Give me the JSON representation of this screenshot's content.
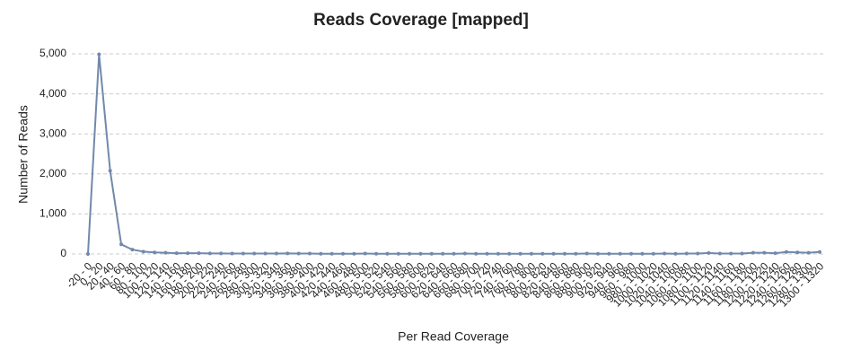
{
  "chart_data": {
    "type": "line",
    "title": "Reads Coverage [mapped]",
    "x_label": "Per Read Coverage",
    "y_label": "Number of Reads",
    "categories": [
      "-20 - 0",
      "0 - 20",
      "20 - 40",
      "40 - 60",
      "60 - 80",
      "80 - 100",
      "100 - 120",
      "120 - 140",
      "140 - 160",
      "160 - 180",
      "180 - 200",
      "200 - 220",
      "220 - 240",
      "240 - 260",
      "260 - 280",
      "280 - 300",
      "300 - 320",
      "320 - 340",
      "340 - 360",
      "360 - 380",
      "380 - 400",
      "400 - 420",
      "420 - 440",
      "440 - 460",
      "460 - 480",
      "480 - 500",
      "500 - 520",
      "520 - 540",
      "540 - 560",
      "560 - 580",
      "580 - 600",
      "600 - 620",
      "620 - 640",
      "640 - 660",
      "660 - 680",
      "680 - 700",
      "700 - 720",
      "720 - 740",
      "740 - 760",
      "760 - 780",
      "780 - 800",
      "800 - 820",
      "820 - 840",
      "840 - 860",
      "860 - 880",
      "880 - 900",
      "900 - 920",
      "920 - 940",
      "940 - 960",
      "960 - 980",
      "980 - 1000",
      "1000 - 1020",
      "1020 - 1040",
      "1040 - 1060",
      "1060 - 1080",
      "1080 - 1100",
      "1100 - 1120",
      "1120 - 1140",
      "1140 - 1160",
      "1160 - 1180",
      "1180 - 1200",
      "1200 - 1220",
      "1220 - 1240",
      "1240 - 1260",
      "1260 - 1280",
      "1280 - 1300",
      "1300 - 1320"
    ],
    "series": [
      {
        "name": "Number of Reads",
        "color": "#7189ab",
        "values": [
          0,
          4990,
          2080,
          240,
          110,
          60,
          40,
          30,
          20,
          20,
          20,
          15,
          15,
          10,
          10,
          10,
          10,
          10,
          15,
          10,
          10,
          5,
          5,
          5,
          5,
          10,
          5,
          5,
          5,
          5,
          5,
          5,
          5,
          5,
          10,
          5,
          5,
          5,
          5,
          5,
          5,
          5,
          5,
          5,
          5,
          10,
          5,
          5,
          5,
          5,
          5,
          5,
          10,
          5,
          10,
          10,
          25,
          10,
          10,
          10,
          30,
          30,
          20,
          50,
          40,
          30,
          50
        ]
      }
    ],
    "ylim": [
      0,
      5000
    ],
    "yticks": [
      0,
      {
        "value": 1000,
        "label": "1,000"
      },
      {
        "value": 2000,
        "label": "2,000"
      },
      {
        "value": 3000,
        "label": "3,000"
      },
      {
        "value": 4000,
        "label": "4,000"
      },
      {
        "value": 5000,
        "label": "5,000"
      }
    ],
    "grid": true
  }
}
